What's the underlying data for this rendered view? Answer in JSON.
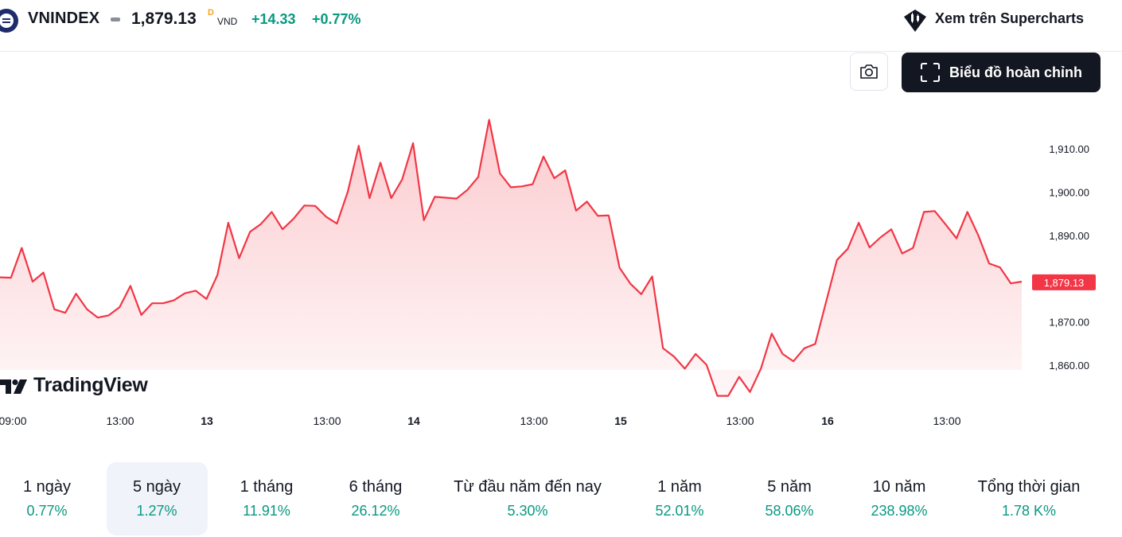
{
  "header": {
    "symbol": "VNINDEX",
    "price": "1,879.13",
    "price_suffix": "D",
    "currency": "VND",
    "change": "+14.33",
    "change_pct": "+0.77%",
    "supercharts_label": "Xem trên Supercharts",
    "up_color": "#089981"
  },
  "toolbar": {
    "fullchart_label": "Biểu đồ hoàn chỉnh",
    "camera_icon": "camera-icon",
    "fullscreen_icon": "fullscreen-icon"
  },
  "branding": {
    "logo_text": "TradingView"
  },
  "chart_data": {
    "type": "area",
    "line_color": "#f23645",
    "y_ticks": [
      "1,910.00",
      "1,900.00",
      "1,890.00",
      "1,870.00",
      "1,860.00"
    ],
    "y_tick_values": [
      1910,
      1900,
      1890,
      1870,
      1860
    ],
    "last_price_label": "1,879.13",
    "last_price_value": 1879.13,
    "x_ticks": [
      "09:00",
      "13:00",
      "13",
      "13:00",
      "14",
      "13:00",
      "15",
      "13:00",
      "16",
      "13:00"
    ],
    "x_ticks_bold": [
      false,
      false,
      true,
      false,
      true,
      false,
      true,
      false,
      true,
      false
    ],
    "ylim": [
      1852,
      1922
    ],
    "values": [
      1880.3,
      1880.2,
      1887.1,
      1879.3,
      1881.4,
      1872.9,
      1872.1,
      1876.5,
      1872.9,
      1871.0,
      1871.5,
      1873.4,
      1878.3,
      1871.6,
      1874.3,
      1874.3,
      1875.0,
      1876.6,
      1877.2,
      1875.3,
      1880.8,
      1892.9,
      1884.7,
      1890.8,
      1892.6,
      1895.4,
      1891.4,
      1893.8,
      1896.9,
      1896.8,
      1894.3,
      1892.7,
      1900.1,
      1910.7,
      1898.6,
      1906.8,
      1898.6,
      1902.9,
      1911.3,
      1893.5,
      1898.9,
      1898.7,
      1898.5,
      1900.5,
      1903.5,
      1916.7,
      1904.3,
      1901.1,
      1901.3,
      1901.8,
      1908.2,
      1903.2,
      1905.0,
      1895.7,
      1897.8,
      1894.5,
      1894.6,
      1882.5,
      1878.8,
      1876.4,
      1880.5,
      1863.9,
      1862.0,
      1859.2,
      1862.6,
      1860.1,
      1852.9,
      1852.9,
      1857.3,
      1853.8,
      1859.2,
      1867.3,
      1862.6,
      1860.9,
      1863.9,
      1864.9,
      1874.6,
      1884.3,
      1886.9,
      1892.9,
      1887.2,
      1889.5,
      1891.4,
      1885.8,
      1887.1,
      1895.4,
      1895.6,
      1892.5,
      1889.3,
      1895.4,
      1890.0,
      1883.5,
      1882.6,
      1878.9,
      1879.3
    ]
  },
  "periods": [
    {
      "label": "1 ngày",
      "value": "0.77%"
    },
    {
      "label": "5 ngày",
      "value": "1.27%",
      "active": true
    },
    {
      "label": "1 tháng",
      "value": "11.91%"
    },
    {
      "label": "6 tháng",
      "value": "26.12%"
    },
    {
      "label": "Từ đầu năm đến nay",
      "value": "5.30%"
    },
    {
      "label": "1 năm",
      "value": "52.01%"
    },
    {
      "label": "5 năm",
      "value": "58.06%"
    },
    {
      "label": "10 năm",
      "value": "238.98%"
    },
    {
      "label": "Tổng thời gian",
      "value": "1.78 K%"
    }
  ]
}
